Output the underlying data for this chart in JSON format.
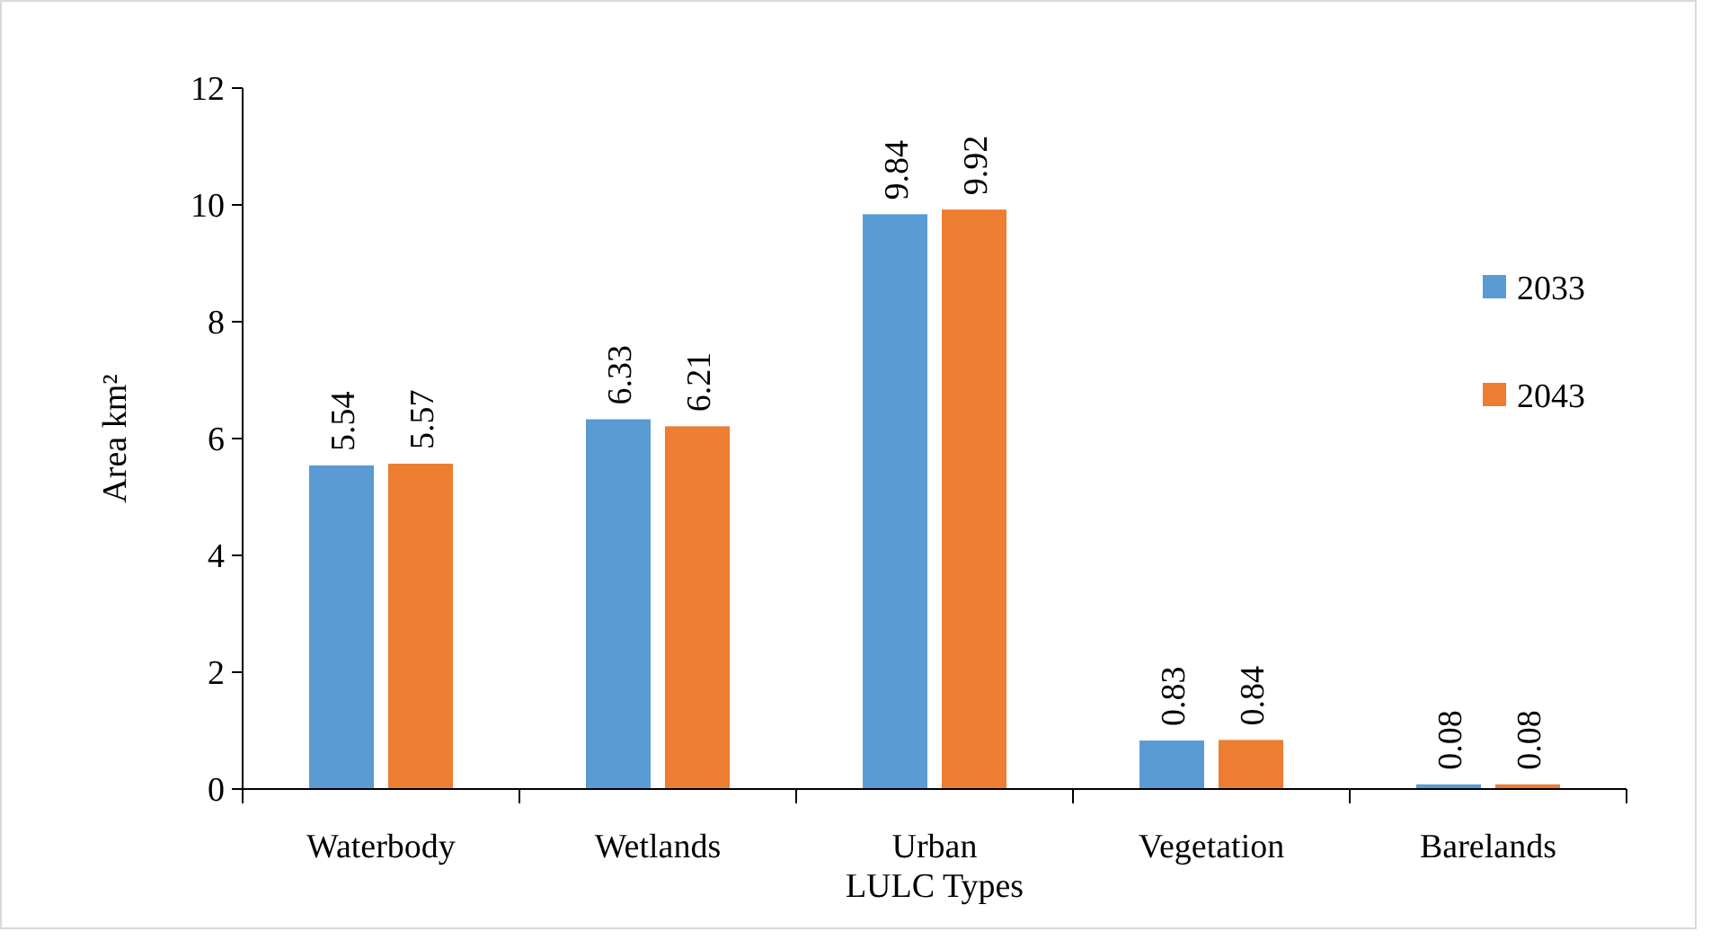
{
  "chart_data": {
    "type": "bar",
    "xlabel": "LULC Types",
    "ylabel": "Area km²",
    "categories": [
      "Waterbody",
      "Wetlands",
      "Urban",
      "Vegetation",
      "Barelands"
    ],
    "series": [
      {
        "name": "2033",
        "color": "#5b9bd5",
        "values": [
          5.54,
          6.33,
          9.84,
          0.83,
          0.08
        ]
      },
      {
        "name": "2043",
        "color": "#ed7d31",
        "values": [
          5.57,
          6.21,
          9.92,
          0.84,
          0.08
        ]
      }
    ],
    "ylim": [
      0,
      12
    ],
    "yticks": [
      0,
      2,
      4,
      6,
      8,
      10,
      12
    ],
    "data_labels": true,
    "legend": "right",
    "grid": false
  }
}
